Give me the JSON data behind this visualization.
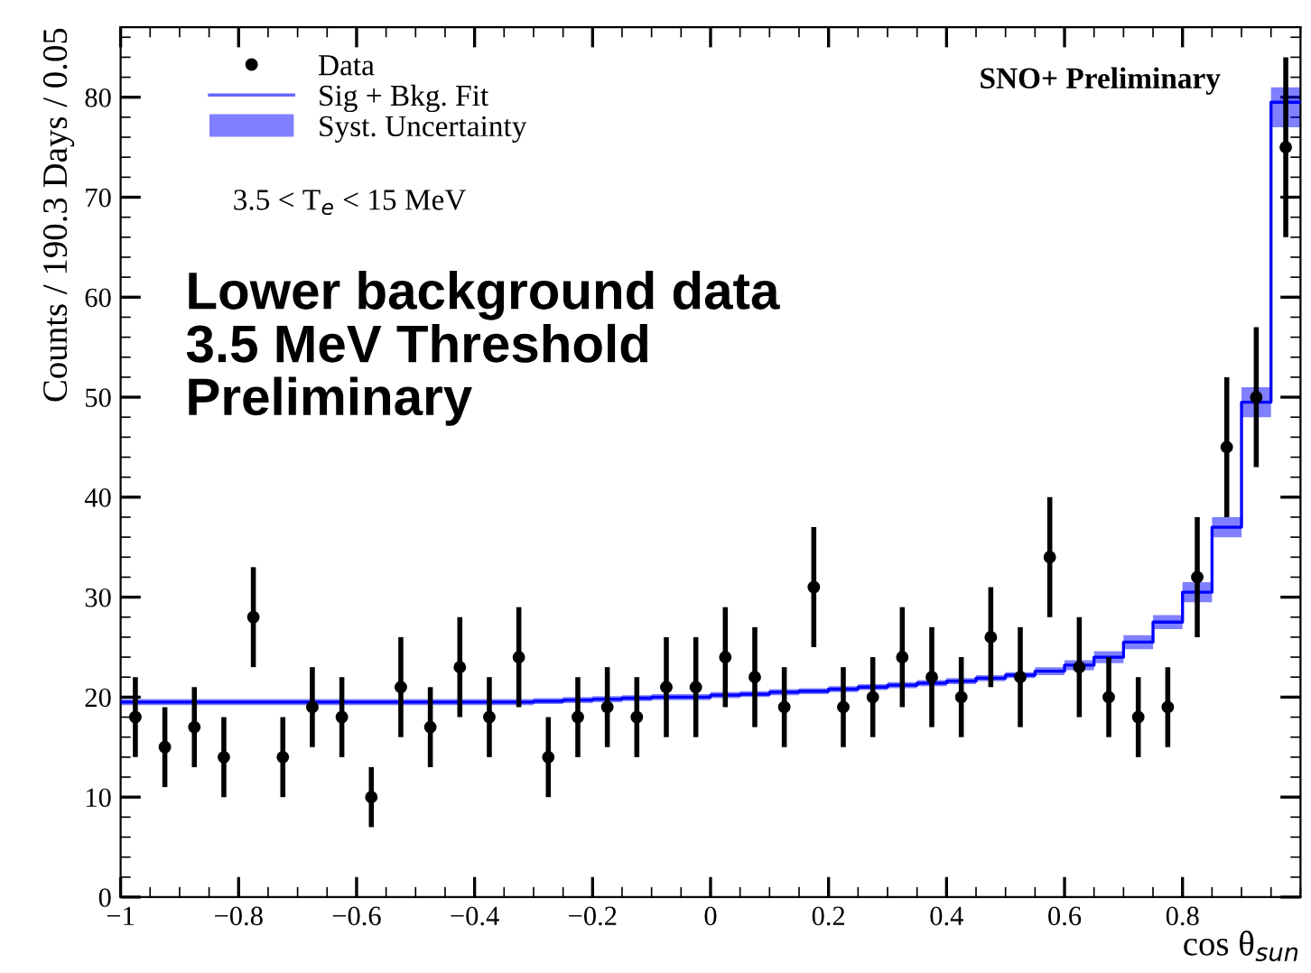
{
  "chart_data": {
    "type": "scatter",
    "ylabel": "Counts / 190.3 Days / 0.05",
    "xlabel": "cos θ$_{sun}$",
    "annotations": [
      "SNO+ Preliminary",
      "3.5 < T$_{e}$ < 15 MeV",
      "Lower background data\n3.5 MeV Threshold\nPreliminary",
      "Syst. Uncertainty"
    ],
    "series": [
      {
        "name": "Data",
        "color": "#000000",
        "marker": "circle",
        "x": [
          -0.975,
          -0.925,
          -0.875,
          -0.825,
          -0.775,
          -0.725,
          -0.675,
          -0.625,
          -0.575,
          -0.525,
          -0.475,
          -0.425,
          -0.375,
          -0.325,
          -0.275,
          -0.225,
          -0.175,
          -0.125,
          -0.075,
          -0.025,
          0.025,
          0.075,
          0.125,
          0.175,
          0.225,
          0.275,
          0.325,
          0.375,
          0.425,
          0.475,
          0.525,
          0.575,
          0.625,
          0.675,
          0.725,
          0.775,
          0.825,
          0.875,
          0.925,
          0.975
        ],
        "values": [
          18,
          15,
          17,
          14,
          28,
          14,
          19,
          18,
          10,
          21,
          17,
          23,
          18,
          24,
          14,
          18,
          19,
          18,
          21,
          21,
          24,
          22,
          19,
          31,
          19,
          20,
          24,
          22,
          20,
          26,
          22,
          34,
          23,
          20,
          18,
          19,
          32,
          45,
          50,
          75
        ],
        "errors": [
          4,
          4,
          4,
          4,
          5,
          4,
          4,
          4,
          3,
          5,
          4,
          5,
          4,
          5,
          4,
          4,
          4,
          4,
          5,
          5,
          5,
          5,
          4,
          6,
          4,
          4,
          5,
          5,
          4,
          5,
          5,
          6,
          5,
          4,
          4,
          4,
          6,
          7,
          7,
          9
        ]
      },
      {
        "name": "Sig + Bkg. Fit",
        "type": "step",
        "color": "#0000ff",
        "x": [
          -1,
          -0.95,
          -0.9,
          -0.85,
          -0.8,
          -0.75,
          -0.7,
          -0.65,
          -0.6,
          -0.55,
          -0.5,
          -0.45,
          -0.4,
          -0.35,
          -0.3,
          -0.25,
          -0.2,
          -0.15,
          -0.1,
          -0.05,
          0,
          0.05,
          0.1,
          0.15,
          0.2,
          0.25,
          0.3,
          0.35,
          0.4,
          0.45,
          0.5,
          0.55,
          0.6,
          0.65,
          0.7,
          0.75,
          0.8,
          0.85,
          0.9,
          0.95,
          1
        ],
        "values": [
          19.5,
          19.5,
          19.5,
          19.5,
          19.5,
          19.5,
          19.5,
          19.5,
          19.5,
          19.5,
          19.5,
          19.5,
          19.5,
          19.5,
          19.6,
          19.7,
          19.8,
          19.9,
          20,
          20,
          20.2,
          20.3,
          20.5,
          20.6,
          20.8,
          21,
          21.2,
          21.4,
          21.6,
          21.9,
          22.2,
          22.6,
          23.2,
          24,
          25.5,
          27.5,
          30.5,
          37,
          49.5,
          79.5,
          79.5
        ],
        "lower": [
          19.2,
          19.2,
          19.2,
          19.2,
          19.2,
          19.2,
          19.2,
          19.2,
          19.2,
          19.2,
          19.2,
          19.2,
          19.2,
          19.2,
          19.3,
          19.4,
          19.5,
          19.6,
          19.7,
          19.7,
          19.9,
          20,
          20.2,
          20.3,
          20.5,
          20.7,
          20.9,
          21.1,
          21.3,
          21.6,
          21.9,
          22.2,
          22.7,
          23.4,
          24.8,
          26.8,
          29.5,
          36,
          48,
          77,
          77
        ],
        "upper": [
          19.8,
          19.8,
          19.8,
          19.8,
          19.8,
          19.8,
          19.8,
          19.8,
          19.8,
          19.8,
          19.8,
          19.8,
          19.8,
          19.8,
          19.9,
          20,
          20.1,
          20.2,
          20.3,
          20.3,
          20.5,
          20.6,
          20.8,
          20.9,
          21.1,
          21.3,
          21.5,
          21.7,
          21.9,
          22.2,
          22.5,
          23,
          23.7,
          24.6,
          26.2,
          28.2,
          31.5,
          38,
          51,
          81,
          81
        ]
      }
    ],
    "xlim": [
      -1,
      1
    ],
    "ylim": [
      0,
      87
    ],
    "xticks": [
      {
        "value": -1,
        "label": "−1"
      },
      {
        "value": -0.8,
        "label": "−0.8"
      },
      {
        "value": -0.6,
        "label": "−0.6"
      },
      {
        "value": -0.4,
        "label": "−0.4"
      },
      {
        "value": -0.2,
        "label": "−0.2"
      },
      0,
      0.2,
      0.4,
      0.6,
      0.8
    ],
    "yticks": [
      0,
      10,
      20,
      30,
      40,
      50,
      60,
      70,
      80
    ],
    "legend": "top left",
    "grid": false
  }
}
